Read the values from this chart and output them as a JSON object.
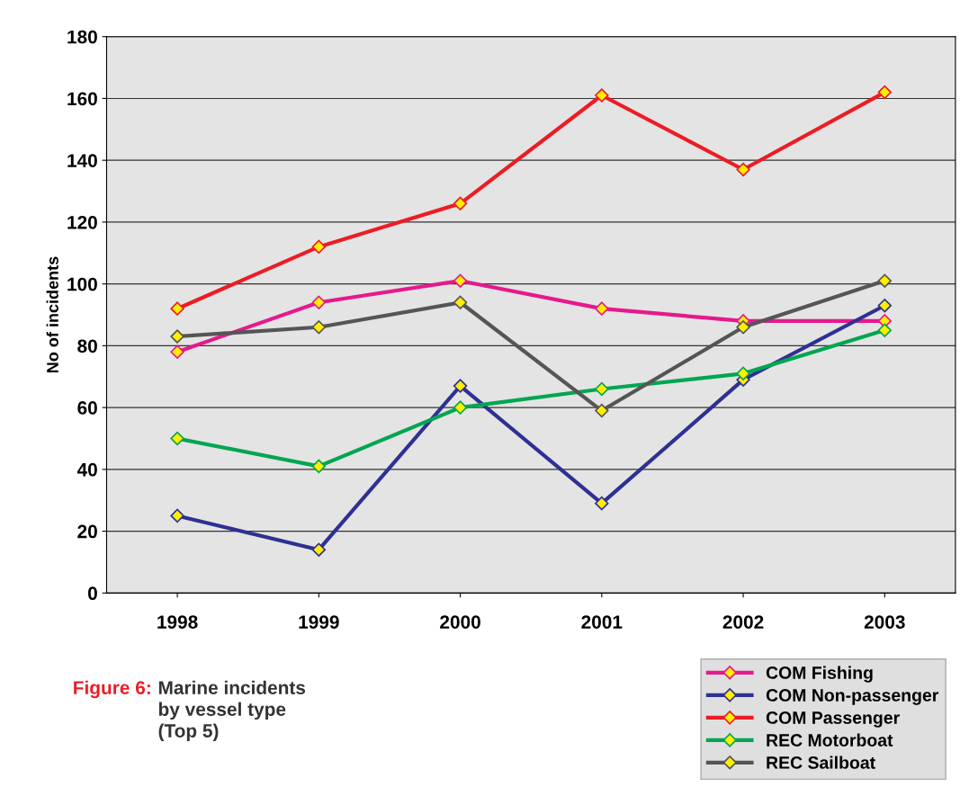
{
  "chart_data": {
    "type": "line",
    "title": "Figure 6:",
    "subtitle": "Marine incidents\nby vessel type\n(Top 5)",
    "ylabel": "No of incidents",
    "categories": [
      "1998",
      "1999",
      "2000",
      "2001",
      "2002",
      "2003"
    ],
    "series": [
      {
        "name": "COM Fishing",
        "color": "#e6198c",
        "values": [
          78,
          94,
          101,
          92,
          88,
          88
        ]
      },
      {
        "name": "COM Non-passenger",
        "color": "#2e3192",
        "values": [
          25,
          14,
          67,
          29,
          69,
          93
        ]
      },
      {
        "name": "COM Passenger",
        "color": "#ed1c24",
        "values": [
          92,
          112,
          126,
          161,
          137,
          162
        ]
      },
      {
        "name": "REC Motorboat",
        "color": "#00a651",
        "values": [
          50,
          41,
          60,
          66,
          71,
          85
        ]
      },
      {
        "name": "REC Sailboat",
        "color": "#555555",
        "values": [
          83,
          86,
          94,
          59,
          86,
          101
        ]
      }
    ],
    "ylim": [
      0,
      180
    ],
    "yticks": [
      0,
      20,
      40,
      60,
      80,
      100,
      120,
      140,
      160,
      180
    ],
    "grid": "y",
    "legend": "bottom right",
    "marker": "diamond",
    "line_style": "solid"
  }
}
